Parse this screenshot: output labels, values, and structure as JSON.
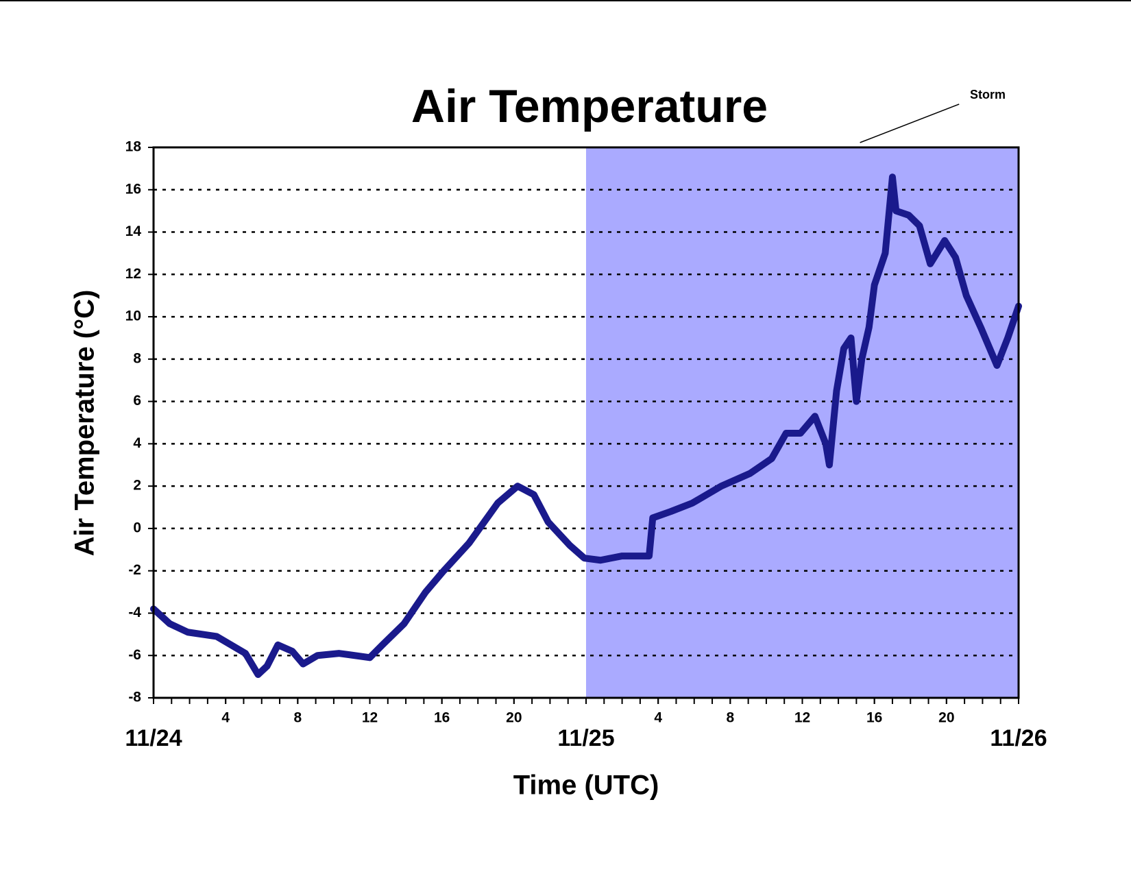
{
  "chart_data": {
    "type": "line",
    "title": "Air Temperature",
    "y_label": "Air Temperature (°C)",
    "x_label": "Time (UTC)",
    "x": [
      0,
      0.9,
      1.9,
      3.5,
      5.1,
      5.8,
      6.3,
      6.9,
      7.7,
      8.3,
      9.1,
      10.3,
      12,
      12.7,
      13.9,
      15.1,
      16.1,
      17.5,
      19.1,
      20.2,
      21.1,
      21.9,
      23.1,
      23.9,
      24.8,
      26,
      26.9,
      27.5,
      27.7,
      28.7,
      29.9,
      31.5,
      33.1,
      34.3,
      35.1,
      35.9,
      36.7,
      37.3,
      37.5,
      37.9,
      38.3,
      38.7,
      39.0,
      39.3,
      39.7,
      40.0,
      40.6,
      41.0,
      41.2,
      41.9,
      42.5,
      43.1,
      43.9,
      44.5,
      45.1,
      45.9,
      46.8,
      47.4,
      48
    ],
    "series": [
      {
        "name": "Air Temperature",
        "color": "#1a1a8c",
        "values": [
          -3.8,
          -4.5,
          -4.9,
          -5.1,
          -5.9,
          -6.9,
          -6.5,
          -5.5,
          -5.8,
          -6.4,
          -6.0,
          -5.9,
          -6.1,
          -5.5,
          -4.5,
          -3.0,
          -2.0,
          -0.7,
          1.2,
          2.0,
          1.6,
          0.3,
          -0.8,
          -1.4,
          -1.5,
          -1.3,
          -1.3,
          -1.3,
          0.5,
          0.8,
          1.2,
          2.0,
          2.6,
          3.3,
          4.5,
          4.5,
          5.3,
          4.0,
          3.0,
          6.5,
          8.5,
          9.0,
          6.0,
          8.0,
          9.5,
          11.5,
          13.0,
          16.6,
          15.0,
          14.8,
          14.3,
          12.5,
          13.6,
          12.8,
          11.0,
          9.5,
          7.7,
          9.0,
          10.5
        ]
      }
    ],
    "xlim": [
      0,
      48
    ],
    "ylim": [
      -8,
      18
    ],
    "yticks": [
      -8,
      -6,
      -4,
      -2,
      0,
      2,
      4,
      6,
      8,
      10,
      12,
      14,
      16,
      18
    ],
    "xticks": [
      4,
      8,
      12,
      16,
      20,
      {
        "value": 28,
        "label": "4"
      },
      {
        "value": 32,
        "label": "8"
      },
      {
        "value": 36,
        "label": "12"
      },
      {
        "value": 40,
        "label": "16"
      },
      {
        "value": 44,
        "label": "20"
      }
    ],
    "date_ticks": [
      {
        "value": 0,
        "label": "11/24"
      },
      {
        "value": 24,
        "label": "11/25"
      },
      {
        "value": 48,
        "label": "11/26"
      }
    ],
    "xminor_step": 1,
    "grid": true,
    "shaded_regions": [
      {
        "label": "Storm",
        "x": [
          24,
          48
        ],
        "color": "#aaaaff"
      }
    ]
  }
}
